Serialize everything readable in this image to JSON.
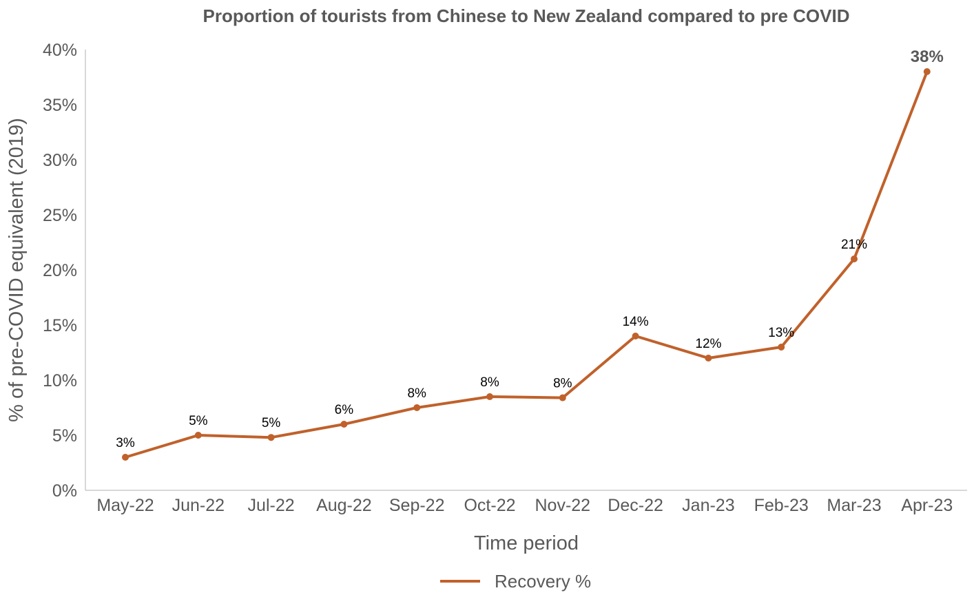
{
  "chart_data": {
    "type": "line",
    "title": "Proportion of tourists from Chinese to New Zealand compared to pre COVID",
    "xlabel": "Time period",
    "ylabel": "% of pre-COVID equivalent (2019)",
    "categories": [
      "May-22",
      "Jun-22",
      "Jul-22",
      "Aug-22",
      "Sep-22",
      "Oct-22",
      "Nov-22",
      "Dec-22",
      "Jan-23",
      "Feb-23",
      "Mar-23",
      "Apr-23"
    ],
    "series": [
      {
        "name": "Recovery %",
        "color": "#C0612B",
        "values": [
          3.0,
          5.0,
          4.8,
          6.0,
          7.5,
          8.5,
          8.4,
          14.0,
          12.0,
          13.0,
          21.0,
          38.0
        ],
        "data_labels": [
          "3%",
          "5%",
          "5%",
          "6%",
          "8%",
          "8%",
          "8%",
          "14%",
          "12%",
          "13%",
          "21%",
          "38%"
        ],
        "emphasized_label_index": 11
      }
    ],
    "ylim": [
      0,
      40
    ],
    "yticks": [
      0,
      5,
      10,
      15,
      20,
      25,
      30,
      35,
      40
    ],
    "ytick_labels": [
      "0%",
      "5%",
      "10%",
      "15%",
      "20%",
      "25%",
      "30%",
      "35%",
      "40%"
    ],
    "grid": false,
    "legend_position": "bottom-center"
  }
}
